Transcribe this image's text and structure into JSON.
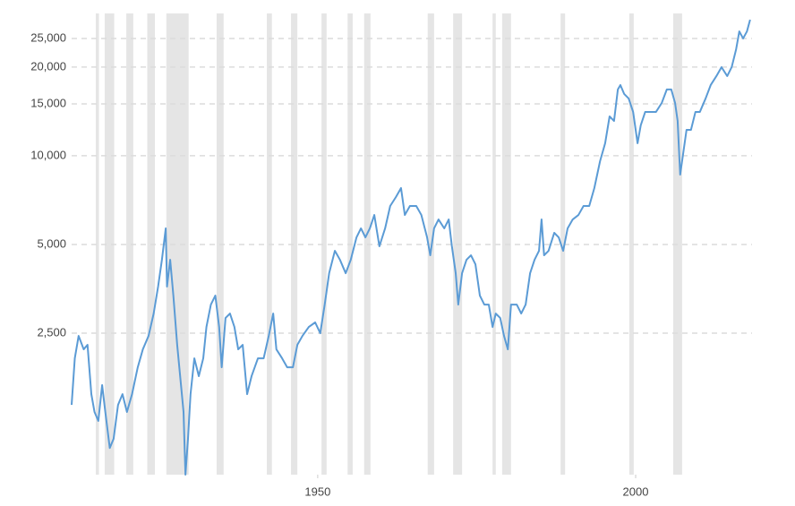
{
  "chart_data": {
    "type": "line",
    "log_scale": true,
    "grid": true,
    "color": "#5b9bd5",
    "recession_color": "#e5e5e5",
    "xlim": [
      1911.3,
      2018.3
    ],
    "xticks": [
      1950,
      2000
    ],
    "ylim": [
      828,
      30400
    ],
    "yticks": [
      {
        "value": 2500,
        "label": "2,500"
      },
      {
        "value": 5000,
        "label": "5,000"
      },
      {
        "value": 10000,
        "label": "10,000"
      },
      {
        "value": 15000,
        "label": "15,000"
      },
      {
        "value": 20000,
        "label": "20,000"
      },
      {
        "value": 25000,
        "label": "25,000"
      }
    ],
    "recessions": [
      [
        1915.1,
        1915.6
      ],
      [
        1916.5,
        1918.0
      ],
      [
        1919.9,
        1921.0
      ],
      [
        1923.2,
        1924.4
      ],
      [
        1926.2,
        1929.7
      ],
      [
        1934.1,
        1935.2
      ],
      [
        1942.0,
        1942.8
      ],
      [
        1945.8,
        1946.8
      ],
      [
        1950.6,
        1951.4
      ],
      [
        1954.7,
        1955.5
      ],
      [
        1957.3,
        1958.3
      ],
      [
        1967.3,
        1968.3
      ],
      [
        1971.3,
        1972.7
      ],
      [
        1977.5,
        1978.0
      ],
      [
        1979.0,
        1980.4
      ],
      [
        1988.2,
        1988.9
      ],
      [
        1999.0,
        1999.7
      ],
      [
        2005.9,
        2007.3
      ]
    ],
    "x": [
      1911.3,
      1911.8,
      1912.4,
      1913.2,
      1913.8,
      1914.4,
      1914.9,
      1915.5,
      1916.1,
      1916.6,
      1917.3,
      1917.9,
      1918.6,
      1919.3,
      1920.0,
      1920.8,
      1921.7,
      1922.5,
      1923.4,
      1924.2,
      1924.9,
      1925.5,
      1926.1,
      1926.3,
      1926.8,
      1927.3,
      1927.9,
      1928.5,
      1928.9,
      1929.2,
      1929.6,
      1930.0,
      1930.6,
      1931.3,
      1932.0,
      1932.5,
      1933.2,
      1933.9,
      1934.5,
      1934.9,
      1935.5,
      1936.2,
      1936.9,
      1937.5,
      1938.2,
      1938.9,
      1939.6,
      1940.6,
      1941.5,
      1942.3,
      1943.0,
      1943.5,
      1944.4,
      1945.2,
      1946.1,
      1946.8,
      1947.6,
      1948.6,
      1949.6,
      1950.4,
      1951.1,
      1951.8,
      1952.7,
      1953.5,
      1954.4,
      1955.2,
      1956.1,
      1956.8,
      1957.5,
      1958.2,
      1958.9,
      1959.7,
      1960.6,
      1961.4,
      1962.3,
      1963.1,
      1963.7,
      1964.5,
      1965.5,
      1966.3,
      1967.2,
      1967.7,
      1968.3,
      1969.0,
      1969.9,
      1970.6,
      1971.1,
      1971.7,
      1972.1,
      1972.7,
      1973.4,
      1974.1,
      1974.8,
      1975.5,
      1976.2,
      1976.9,
      1977.5,
      1978.0,
      1978.7,
      1979.3,
      1979.9,
      1980.4,
      1981.3,
      1982.0,
      1982.7,
      1983.4,
      1984.1,
      1984.8,
      1985.2,
      1985.6,
      1986.3,
      1987.2,
      1987.9,
      1988.6,
      1989.3,
      1990.1,
      1991.0,
      1991.8,
      1992.7,
      1993.5,
      1994.4,
      1995.2,
      1995.9,
      1996.6,
      1997.2,
      1997.6,
      1998.2,
      1998.9,
      1999.6,
      2000.3,
      2000.8,
      2001.5,
      2002.4,
      2003.2,
      2004.1,
      2004.9,
      2005.6,
      2006.2,
      2006.6,
      2006.9,
      2007.0,
      2007.5,
      2008.0,
      2008.7,
      2009.4,
      2010.1,
      2011.0,
      2011.8,
      2012.7,
      2013.5,
      2014.4,
      2015.1,
      2015.8,
      2016.3,
      2016.9,
      2017.5,
      2018.0
    ],
    "values": [
      1428,
      2055,
      2448,
      2204,
      2283,
      1553,
      1351,
      1260,
      1667,
      1351,
      1020,
      1095,
      1428,
      1553,
      1351,
      1553,
      1916,
      2204,
      2448,
      2915,
      3598,
      4437,
      5671,
      3598,
      4437,
      3354,
      2283,
      1667,
      1351,
      828,
      1095,
      1553,
      2055,
      1788,
      2055,
      2625,
      3127,
      3354,
      2625,
      1916,
      2815,
      2915,
      2625,
      2204,
      2283,
      1553,
      1788,
      2055,
      2055,
      2448,
      2915,
      2204,
      2055,
      1916,
      1916,
      2283,
      2448,
      2625,
      2720,
      2500,
      3127,
      3995,
      4759,
      4437,
      3995,
      4437,
      5286,
      5671,
      5286,
      5671,
      6295,
      4930,
      5671,
      6754,
      7245,
      7770,
      6295,
      6754,
      6754,
      6295,
      5286,
      4596,
      5671,
      6080,
      5671,
      6080,
      4930,
      3995,
      3127,
      3995,
      4437,
      4596,
      4285,
      3354,
      3127,
      3127,
      2625,
      2915,
      2815,
      2448,
      2204,
      3127,
      3127,
      2915,
      3127,
      3995,
      4437,
      4759,
      6080,
      4596,
      4759,
      5476,
      5286,
      4759,
      5671,
      6080,
      6295,
      6754,
      6754,
      7770,
      9583,
      11027,
      13600,
      13127,
      16783,
      17375,
      16200,
      15645,
      14087,
      11027,
      12680,
      14087,
      14087,
      14087,
      15100,
      16783,
      16783,
      15100,
      13127,
      9583,
      8630,
      10280,
      12245,
      12245,
      14087,
      14087,
      15645,
      17375,
      18633,
      19980,
      18633,
      19980,
      22985,
      26420,
      25000,
      26420,
      28950
    ]
  }
}
